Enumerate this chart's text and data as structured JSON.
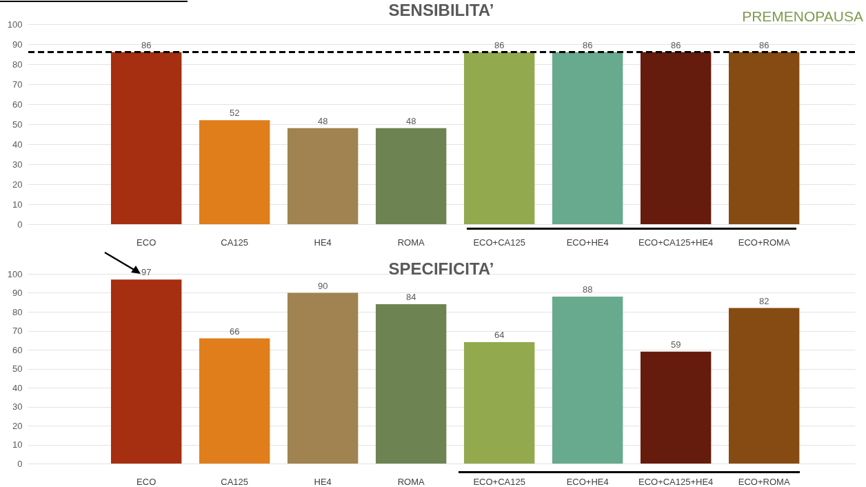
{
  "chart_data": [
    {
      "type": "bar",
      "title": "SENSIBILITA’",
      "categories": [
        "ECO",
        "CA125",
        "HE4",
        "ROMA",
        "ECO+CA125",
        "ECO+HE4",
        "ECO+CA125+HE4",
        "ECO+ROMA"
      ],
      "values": [
        86,
        52,
        48,
        48,
        86,
        86,
        86,
        86
      ],
      "colors": [
        "#a52f10",
        "#df7e1b",
        "#a08350",
        "#6e8352",
        "#92a94e",
        "#67aa8e",
        "#651c0c",
        "#864b12"
      ],
      "ylim": [
        0,
        100
      ],
      "yticks": [
        0,
        10,
        20,
        30,
        40,
        50,
        60,
        70,
        80,
        90,
        100
      ],
      "grid": "y",
      "data_labels": true,
      "ref_lines": [
        {
          "axis": "y",
          "value": 86,
          "color": "#000000",
          "line_style": "dashed"
        }
      ],
      "annotations": [
        "PREMENOPAUSA"
      ]
    },
    {
      "type": "bar",
      "title": "SPECIFICITA’",
      "categories": [
        "ECO",
        "CA125",
        "HE4",
        "ROMA",
        "ECO+CA125",
        "ECO+HE4",
        "ECO+CA125+HE4",
        "ECO+ROMA"
      ],
      "values": [
        97,
        66,
        90,
        84,
        64,
        88,
        59,
        82
      ],
      "colors": [
        "#a52f10",
        "#df7e1b",
        "#a08350",
        "#6e8352",
        "#92a94e",
        "#67aa8e",
        "#651c0c",
        "#864b12"
      ],
      "ylim": [
        0,
        100
      ],
      "yticks": [
        0,
        10,
        20,
        30,
        40,
        50,
        60,
        70,
        80,
        90,
        100
      ],
      "grid": "y",
      "data_labels": true
    }
  ]
}
